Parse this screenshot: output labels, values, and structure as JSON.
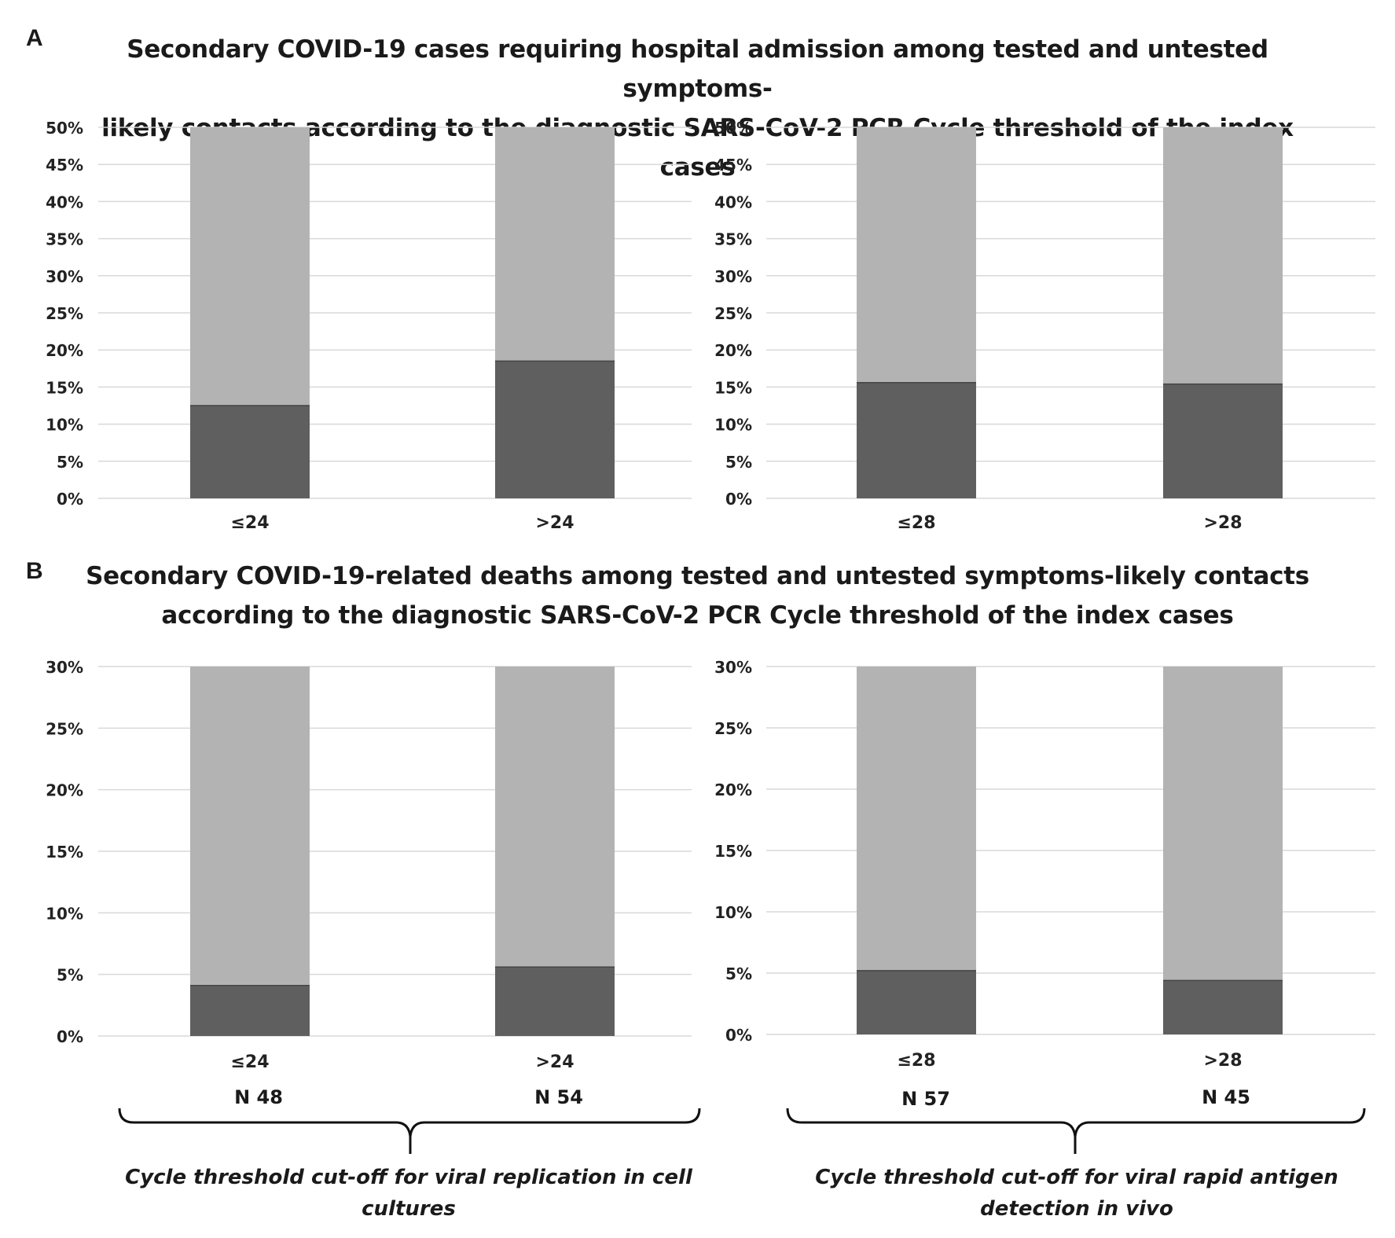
{
  "panel_a": {
    "letter": "A",
    "title_line1": "Secondary COVID-19 cases requiring hospital admission among tested and untested symptoms-",
    "title_line2": "likely contacts according to the diagnostic SARS-CoV-2 PCR Cycle threshold of the index cases"
  },
  "panel_b": {
    "letter": "B",
    "title_line1": "Secondary COVID-19-related deaths among tested and untested symptoms-likely contacts",
    "title_line2": "according to the diagnostic SARS-CoV-2 PCR Cycle threshold of the index cases"
  },
  "n_labels": [
    "N 48",
    "N 54",
    "N 57",
    "N 45"
  ],
  "brace_captions": {
    "left_line1": "Cycle threshold cut-off for viral replication in cell",
    "left_line2": "cultures",
    "right_line1": "Cycle threshold cut-off for viral rapid antigen",
    "right_line2": "detection in vivo"
  },
  "colors": {
    "bar_value": "#5f5f5f",
    "bar_background": "#b3b3b3",
    "grid": "#d9d9d9"
  },
  "chart_data": [
    {
      "id": "A-left",
      "type": "bar",
      "title": "Secondary COVID-19 cases requiring hospital admission (Ct cut-off 24)",
      "categories": [
        "≤24",
        ">24"
      ],
      "values": [
        12.5,
        18.5
      ],
      "background": 50,
      "ylim": [
        0,
        50
      ],
      "yticks": [
        0,
        5,
        10,
        15,
        20,
        25,
        30,
        35,
        40,
        45,
        50
      ],
      "unit": "%"
    },
    {
      "id": "A-right",
      "type": "bar",
      "title": "Secondary COVID-19 cases requiring hospital admission (Ct cut-off 28)",
      "categories": [
        "≤28",
        ">28"
      ],
      "values": [
        15.6,
        15.4
      ],
      "background": 50,
      "ylim": [
        0,
        50
      ],
      "yticks": [
        0,
        5,
        10,
        15,
        20,
        25,
        30,
        35,
        40,
        45,
        50
      ],
      "unit": "%"
    },
    {
      "id": "B-left",
      "type": "bar",
      "title": "Secondary COVID-19-related deaths (Ct cut-off 24)",
      "categories": [
        "≤24",
        ">24"
      ],
      "values": [
        4.1,
        5.6
      ],
      "background": 30,
      "ylim": [
        0,
        30
      ],
      "yticks": [
        0,
        5,
        10,
        15,
        20,
        25,
        30
      ],
      "unit": "%"
    },
    {
      "id": "B-right",
      "type": "bar",
      "title": "Secondary COVID-19-related deaths (Ct cut-off 28)",
      "categories": [
        "≤28",
        ">28"
      ],
      "values": [
        5.2,
        4.4
      ],
      "background": 30,
      "ylim": [
        0,
        30
      ],
      "yticks": [
        0,
        5,
        10,
        15,
        20,
        25,
        30
      ],
      "unit": "%"
    }
  ]
}
